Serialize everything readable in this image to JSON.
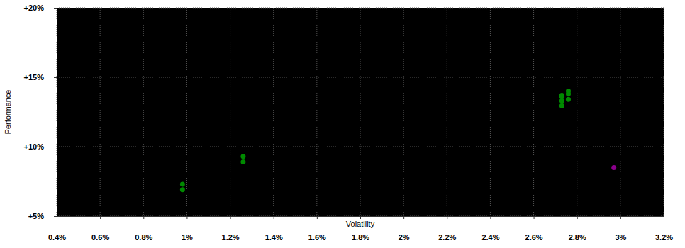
{
  "chart_data": {
    "type": "scatter",
    "x_label": "Volatility",
    "y_label": "Performance",
    "x": [
      0.98,
      0.98,
      1.26,
      1.26,
      2.73,
      2.73,
      2.73,
      2.73,
      2.76,
      2.76,
      2.76,
      2.97
    ],
    "values": [
      7.3,
      6.9,
      9.3,
      8.9,
      13.6,
      13.7,
      13.3,
      12.95,
      14.0,
      13.8,
      13.4,
      8.5
    ],
    "colors": [
      "#008a00",
      "#008a00",
      "#008a00",
      "#008a00",
      "#008a00",
      "#008a00",
      "#008a00",
      "#008a00",
      "#008a00",
      "#008a00",
      "#008a00",
      "#8b008b"
    ],
    "xlim": [
      0.4,
      3.2
    ],
    "xticks": [
      {
        "value": 0.4,
        "label": "0.4%"
      },
      {
        "value": 0.6,
        "label": "0.6%"
      },
      {
        "value": 0.8,
        "label": "0.8%"
      },
      {
        "value": 1.0,
        "label": "1%"
      },
      {
        "value": 1.2,
        "label": "1.2%"
      },
      {
        "value": 1.4,
        "label": "1.4%"
      },
      {
        "value": 1.6,
        "label": "1.6%"
      },
      {
        "value": 1.8,
        "label": "1.8%"
      },
      {
        "value": 2.0,
        "label": "2%"
      },
      {
        "value": 2.2,
        "label": "2.2%"
      },
      {
        "value": 2.4,
        "label": "2.4%"
      },
      {
        "value": 2.6,
        "label": "2.6%"
      },
      {
        "value": 2.8,
        "label": "2.8%"
      },
      {
        "value": 3.0,
        "label": "3%"
      },
      {
        "value": 3.2,
        "label": "3.2%"
      }
    ],
    "ylim": [
      5,
      20
    ],
    "yticks": [
      {
        "value": 5,
        "label": "+5%"
      },
      {
        "value": 10,
        "label": "+10%"
      },
      {
        "value": 15,
        "label": "+15%"
      },
      {
        "value": 20,
        "label": "+20%"
      }
    ],
    "grid": true
  }
}
